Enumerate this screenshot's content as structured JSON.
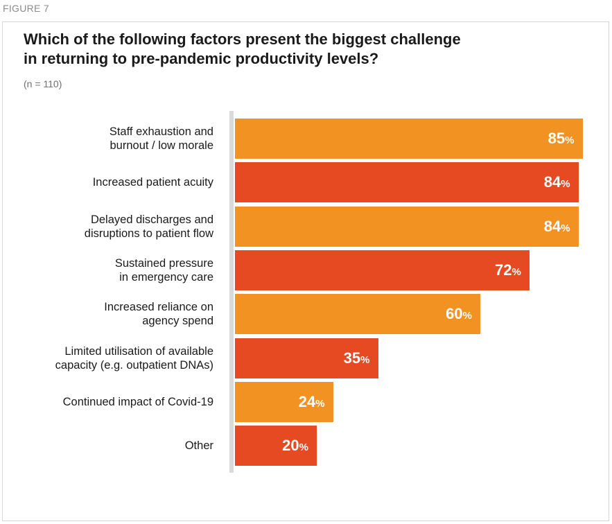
{
  "figure_label": "FIGURE 7",
  "colors": {
    "orange": "#F29222",
    "red": "#E64A22",
    "panel_border": "#D6D6D6",
    "axis": "#D9D9D9"
  },
  "chart_data": {
    "type": "bar",
    "orientation": "horizontal",
    "title": "Which of the following factors present the biggest challenge in returning to pre-pandemic productivity levels?",
    "title_lines": [
      "Which of the following factors present the biggest challenge",
      "in returning to pre-pandemic productivity levels?"
    ],
    "subtitle": "(n = 110)",
    "xlim": [
      0,
      100
    ],
    "value_suffix": "%",
    "categories": [
      [
        "Staff exhaustion and",
        "burnout / low morale"
      ],
      [
        "Increased patient acuity"
      ],
      [
        "Delayed discharges and",
        "disruptions to patient flow"
      ],
      [
        "Sustained pressure",
        "in emergency care"
      ],
      [
        "Increased reliance on",
        "agency spend"
      ],
      [
        "Limited utilisation of available",
        "capacity (e.g. outpatient DNAs)"
      ],
      [
        "Continued impact of Covid-19"
      ],
      [
        "Other"
      ]
    ],
    "values": [
      85,
      84,
      84,
      72,
      60,
      35,
      24,
      20
    ],
    "bar_colors": [
      "#F29222",
      "#E64A22",
      "#F29222",
      "#E64A22",
      "#F29222",
      "#E64A22",
      "#F29222",
      "#E64A22"
    ]
  }
}
